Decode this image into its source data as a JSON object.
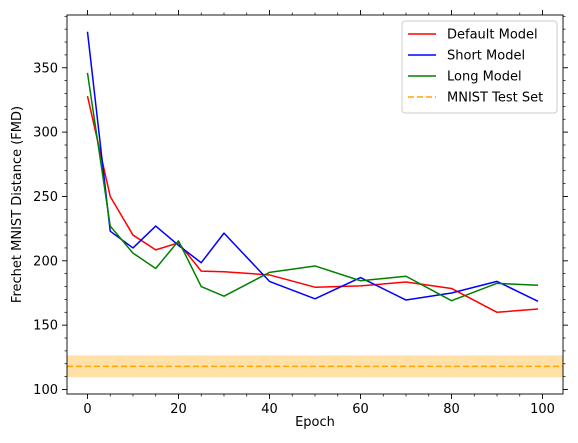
{
  "chart_data": {
    "type": "line",
    "title": "",
    "xlabel": "Epoch",
    "ylabel": "Frechet MNIST Distance (FMD)",
    "xlim": [
      -4.5,
      104.5
    ],
    "ylim": [
      96.5,
      391
    ],
    "xticks": [
      0,
      20,
      40,
      60,
      80,
      100
    ],
    "yticks": [
      100,
      150,
      200,
      250,
      300,
      350
    ],
    "grid": false,
    "legend_position": "top-right",
    "series": [
      {
        "name": "Default Model",
        "color": "#ff0000",
        "style": "solid",
        "x": [
          0,
          5,
          10,
          15,
          20,
          25,
          30,
          40,
          50,
          60,
          70,
          80,
          90,
          99
        ],
        "y": [
          328,
          250,
          220,
          208.5,
          214,
          192,
          191.5,
          189,
          179.5,
          180.5,
          183.5,
          178.5,
          160,
          162.5
        ]
      },
      {
        "name": "Short Model",
        "color": "#0000ff",
        "style": "solid",
        "x": [
          0,
          5,
          10,
          15,
          20,
          25,
          30,
          40,
          50,
          60,
          70,
          80,
          90,
          99
        ],
        "y": [
          378,
          223,
          210,
          227,
          212,
          198.5,
          221.5,
          184,
          170.5,
          187,
          169.5,
          175,
          184,
          168.5
        ]
      },
      {
        "name": "Long Model",
        "color": "#008000",
        "style": "solid",
        "x": [
          0,
          5,
          10,
          15,
          20,
          25,
          30,
          40,
          50,
          60,
          70,
          80,
          90,
          99
        ],
        "y": [
          346,
          227,
          206,
          194,
          215.5,
          180,
          172.5,
          191,
          196,
          184.5,
          188,
          169,
          182.5,
          181
        ]
      }
    ],
    "reference": {
      "name": "MNIST Test Set",
      "color": "#ffa500",
      "style": "dashed",
      "value": 118,
      "band": [
        109.5,
        126.5
      ],
      "band_opacity": 0.35
    }
  }
}
